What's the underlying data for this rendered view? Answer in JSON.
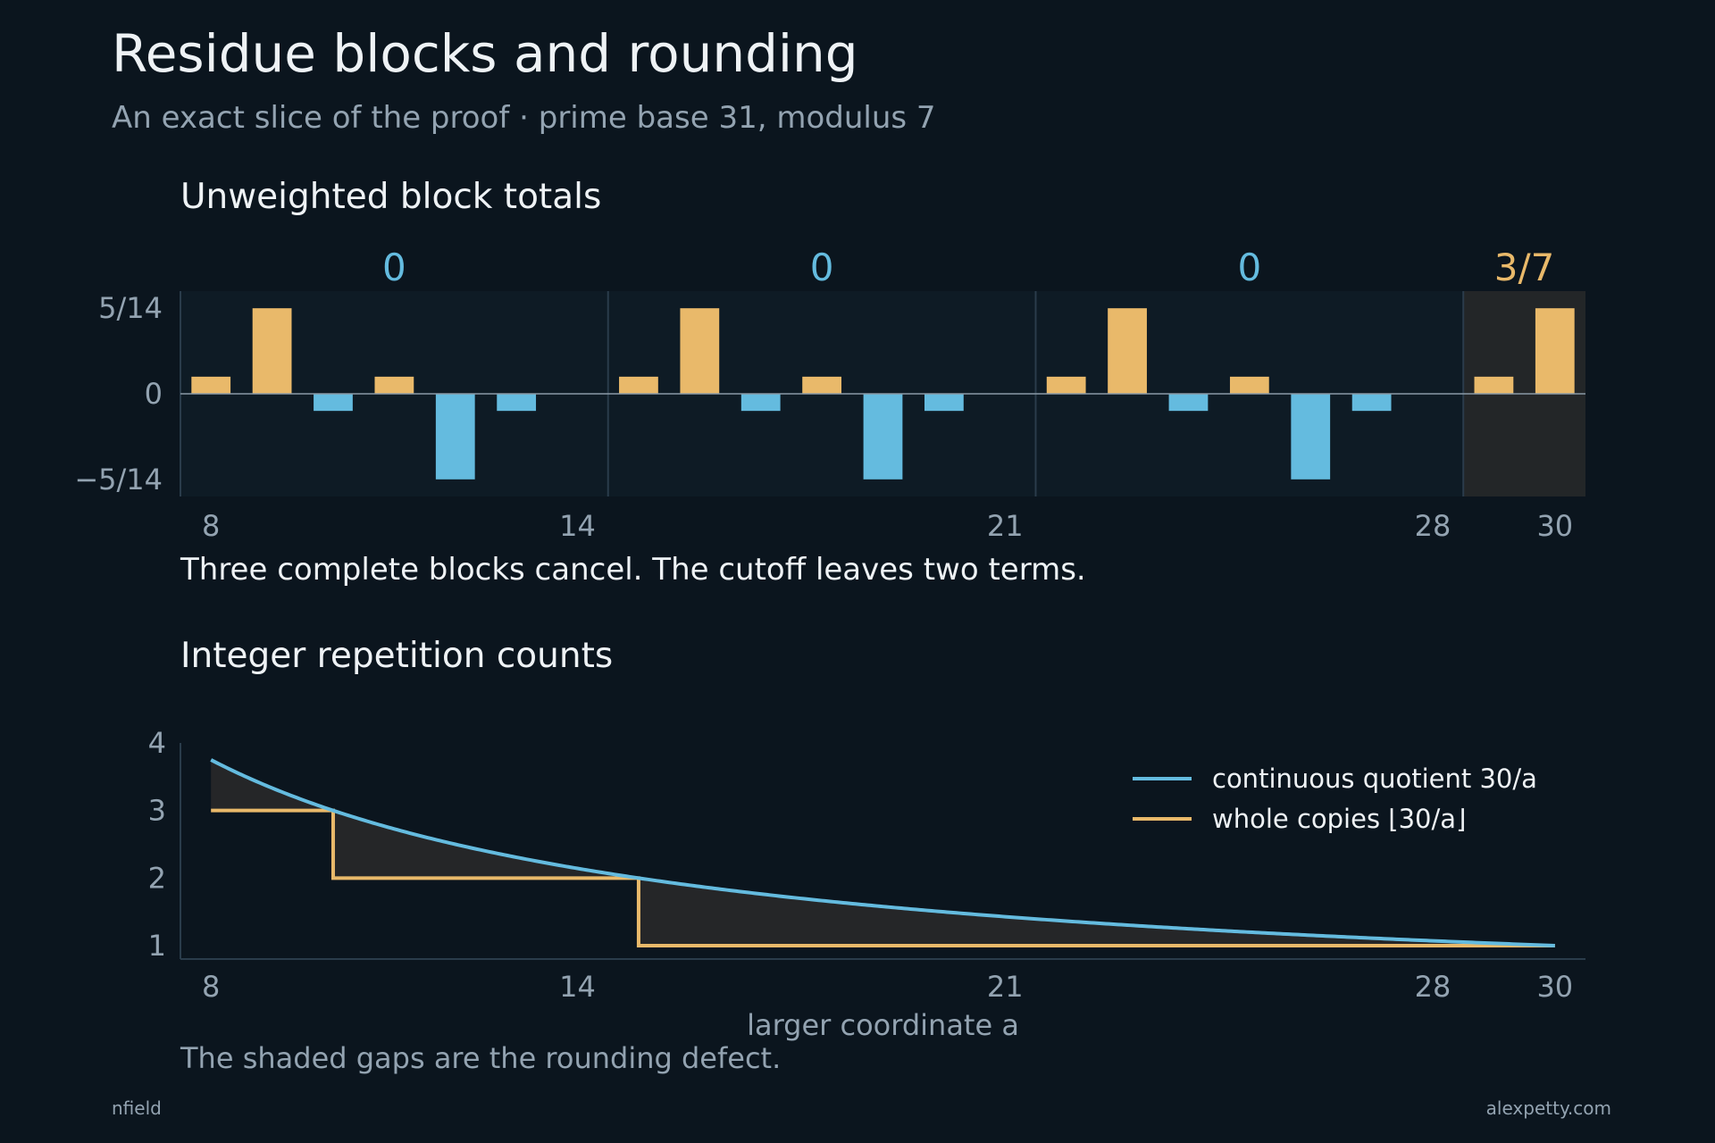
{
  "title": "Residue blocks and rounding",
  "subtitle": "An exact slice of the proof · prime base 31, modulus 7",
  "colors": {
    "background": "#0b151e",
    "panel": "#0e1b25",
    "panel_tail": "#232628",
    "gold": "#e9b96a",
    "blue": "#64bbdf",
    "grid": "#2a3c4b",
    "text_muted": "#93a3b1",
    "text": "#eef2f5",
    "gap_fill": "#252628"
  },
  "chart_data": [
    {
      "type": "bar",
      "title": "Unweighted block totals",
      "caption": "Three complete blocks cancel. The cutoff leaves two terms.",
      "x": [
        8,
        9,
        10,
        11,
        12,
        13,
        14,
        15,
        16,
        17,
        18,
        19,
        20,
        21,
        22,
        23,
        24,
        25,
        26,
        27,
        28,
        29,
        30
      ],
      "values": [
        0.0714,
        0.3571,
        -0.0714,
        0.0714,
        -0.3571,
        -0.0714,
        0,
        0.0714,
        0.3571,
        -0.0714,
        0.0714,
        -0.3571,
        -0.0714,
        0,
        0.0714,
        0.3571,
        -0.0714,
        0.0714,
        -0.3571,
        -0.0714,
        0,
        0.0714,
        0.3571
      ],
      "positive_color": "#e9b96a",
      "negative_color": "#64bbdf",
      "ylim": [
        -0.4286,
        0.4286
      ],
      "yticks": [
        "5/14",
        "0",
        "−5/14"
      ],
      "ytick_values": [
        0.3571,
        0,
        -0.3571
      ],
      "xticks": [
        "8",
        "14",
        "21",
        "28",
        "30"
      ],
      "xtick_values": [
        8,
        14,
        21,
        28,
        30
      ],
      "blocks": [
        {
          "start": 8,
          "end": 14,
          "total": "0",
          "color": "#64bbdf",
          "partial": false
        },
        {
          "start": 15,
          "end": 21,
          "total": "0",
          "color": "#64bbdf",
          "partial": false
        },
        {
          "start": 22,
          "end": 28,
          "total": "0",
          "color": "#64bbdf",
          "partial": false
        },
        {
          "start": 29,
          "end": 30,
          "total": "3/7",
          "color": "#e9b96a",
          "partial": true
        }
      ]
    },
    {
      "type": "line",
      "title": "Integer repetition counts",
      "caption": "The shaded gaps are the rounding defect.",
      "xlabel": "larger coordinate a",
      "xlim": [
        8,
        30
      ],
      "ylim": [
        1,
        4
      ],
      "xticks": [
        "8",
        "14",
        "21",
        "28",
        "30"
      ],
      "xtick_values": [
        8,
        14,
        21,
        28,
        30
      ],
      "yticks": [
        "4",
        "3",
        "2",
        "1"
      ],
      "ytick_values": [
        4,
        3,
        2,
        1
      ],
      "series": [
        {
          "name": "continuous quotient 30/a",
          "color": "#64bbdf",
          "kind": "curve",
          "numerator": 30
        },
        {
          "name": "whole copies ⌊30/a⌋",
          "color": "#e9b96a",
          "kind": "step",
          "x": [
            8,
            10,
            10,
            15,
            15,
            30
          ],
          "values": [
            3,
            3,
            2,
            2,
            1,
            1
          ]
        }
      ]
    }
  ],
  "footer": {
    "left": "nfield",
    "right": "alexpetty.com"
  }
}
